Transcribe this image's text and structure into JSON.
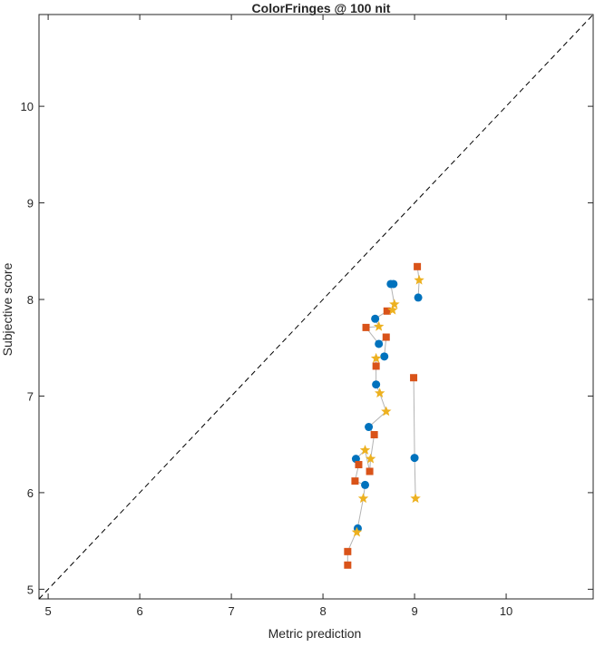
{
  "chart_data": {
    "type": "scatter",
    "title": "ColorFringes @ 100 nit",
    "xlabel": "Metric prediction",
    "ylabel": "Subjective score",
    "xlim": [
      4.9,
      10.95
    ],
    "ylim": [
      4.9,
      10.95
    ],
    "xticks": [
      5,
      6,
      7,
      8,
      9,
      10
    ],
    "yticks": [
      5,
      6,
      7,
      8,
      9,
      10
    ],
    "grid": false,
    "reference_line": {
      "style": "dashed",
      "color": "#000000",
      "from": [
        4.9,
        4.9
      ],
      "to": [
        10.95,
        10.95
      ]
    },
    "series": [
      {
        "marker": "circle",
        "color": "#0072BD",
        "points": [
          [
            8.38,
            5.63
          ],
          [
            8.46,
            6.08
          ],
          [
            8.36,
            6.35
          ],
          [
            8.5,
            6.68
          ],
          [
            8.58,
            7.12
          ],
          [
            8.67,
            7.41
          ],
          [
            8.61,
            7.54
          ],
          [
            8.57,
            7.8
          ],
          [
            8.74,
            8.16
          ],
          [
            8.77,
            8.16
          ],
          [
            9.04,
            8.02
          ],
          [
            9.0,
            6.36
          ]
        ]
      },
      {
        "marker": "square",
        "color": "#D95319",
        "points": [
          [
            8.27,
            5.25
          ],
          [
            8.27,
            5.39
          ],
          [
            8.35,
            6.12
          ],
          [
            8.39,
            6.29
          ],
          [
            8.51,
            6.22
          ],
          [
            8.56,
            6.6
          ],
          [
            8.58,
            7.31
          ],
          [
            8.47,
            7.71
          ],
          [
            8.69,
            7.61
          ],
          [
            8.7,
            7.88
          ],
          [
            9.03,
            8.34
          ],
          [
            8.99,
            7.19
          ]
        ]
      },
      {
        "marker": "star",
        "color": "#EDB120",
        "points": [
          [
            8.37,
            5.59
          ],
          [
            8.44,
            5.94
          ],
          [
            8.52,
            6.35
          ],
          [
            8.46,
            6.44
          ],
          [
            8.69,
            6.84
          ],
          [
            8.62,
            7.03
          ],
          [
            8.58,
            7.39
          ],
          [
            8.61,
            7.72
          ],
          [
            8.76,
            7.89
          ],
          [
            8.78,
            7.95
          ],
          [
            9.05,
            8.2
          ],
          [
            9.01,
            5.94
          ]
        ]
      }
    ],
    "connectors": {
      "color": "#b3b3b3",
      "chains": [
        [
          [
            8.27,
            5.25
          ],
          [
            8.27,
            5.39
          ],
          [
            8.38,
            5.63
          ]
        ],
        [
          [
            8.37,
            5.59
          ],
          [
            8.44,
            5.94
          ],
          [
            8.46,
            6.08
          ],
          [
            8.35,
            6.12
          ],
          [
            8.39,
            6.29
          ],
          [
            8.36,
            6.35
          ],
          [
            8.46,
            6.44
          ],
          [
            8.51,
            6.22
          ],
          [
            8.52,
            6.35
          ],
          [
            8.56,
            6.6
          ],
          [
            8.5,
            6.68
          ],
          [
            8.69,
            6.84
          ],
          [
            8.62,
            7.03
          ],
          [
            8.58,
            7.12
          ],
          [
            8.58,
            7.31
          ],
          [
            8.58,
            7.39
          ],
          [
            8.67,
            7.41
          ],
          [
            8.69,
            7.61
          ],
          [
            8.61,
            7.54
          ],
          [
            8.47,
            7.71
          ],
          [
            8.61,
            7.72
          ],
          [
            8.57,
            7.8
          ],
          [
            8.7,
            7.88
          ],
          [
            8.76,
            7.89
          ],
          [
            8.78,
            7.95
          ],
          [
            8.74,
            8.16
          ],
          [
            8.77,
            8.16
          ]
        ],
        [
          [
            9.03,
            8.34
          ],
          [
            9.05,
            8.2
          ],
          [
            9.04,
            8.02
          ]
        ],
        [
          [
            8.99,
            7.19
          ],
          [
            9.0,
            6.36
          ],
          [
            9.01,
            5.94
          ]
        ]
      ]
    }
  }
}
